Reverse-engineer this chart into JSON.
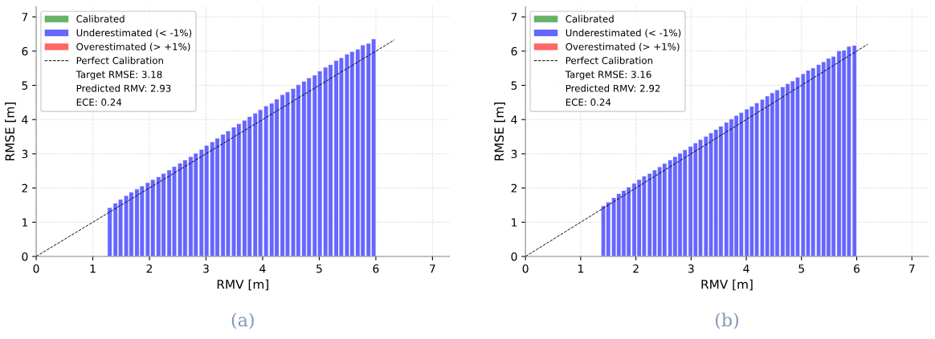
{
  "chart_data": [
    {
      "type": "bar",
      "xlabel": "RMV [m]",
      "ylabel": "RMSE [m]",
      "xlim": [
        0,
        7.3
      ],
      "ylim": [
        0,
        7.3
      ],
      "xticks": [
        0,
        1,
        2,
        3,
        4,
        5,
        6,
        7
      ],
      "yticks": [
        0,
        1,
        2,
        3,
        4,
        5,
        6,
        7
      ],
      "grid": true,
      "legend": "top left",
      "x": [
        1.3,
        1.4,
        1.49,
        1.59,
        1.68,
        1.78,
        1.87,
        1.97,
        2.06,
        2.16,
        2.25,
        2.35,
        2.44,
        2.54,
        2.63,
        2.73,
        2.82,
        2.92,
        3.01,
        3.11,
        3.2,
        3.3,
        3.39,
        3.49,
        3.58,
        3.68,
        3.77,
        3.87,
        3.96,
        4.06,
        4.16,
        4.25,
        4.35,
        4.44,
        4.54,
        4.63,
        4.73,
        4.82,
        4.92,
        5.01,
        5.11,
        5.2,
        5.3,
        5.39,
        5.49,
        5.58,
        5.68,
        5.77,
        5.87,
        5.96
      ],
      "series": [
        {
          "name": "Calibrated",
          "color": "#66b266",
          "values": [
            null,
            null,
            null,
            null,
            null,
            null,
            null,
            null,
            null,
            null,
            null,
            null,
            null,
            null,
            null,
            null,
            null,
            null,
            null,
            null,
            null,
            null,
            null,
            null,
            null,
            null,
            null,
            null,
            null,
            null,
            null,
            null,
            null,
            null,
            null,
            null,
            null,
            null,
            null,
            null,
            null,
            null,
            null,
            null,
            null,
            null,
            null,
            null,
            null,
            null
          ]
        },
        {
          "name": "Underestimated (< -1%)",
          "color": "#6666ff",
          "values": [
            1.43,
            1.56,
            1.67,
            1.78,
            1.88,
            1.97,
            2.06,
            2.16,
            2.25,
            2.33,
            2.43,
            2.53,
            2.63,
            2.73,
            2.82,
            2.92,
            3.02,
            3.13,
            3.25,
            3.35,
            3.46,
            3.57,
            3.67,
            3.78,
            3.88,
            3.98,
            4.09,
            4.19,
            4.29,
            4.4,
            4.48,
            4.6,
            4.73,
            4.81,
            4.91,
            5.02,
            5.12,
            5.22,
            5.3,
            5.42,
            5.53,
            5.61,
            5.73,
            5.81,
            5.91,
            5.99,
            6.06,
            6.18,
            6.23,
            6.36
          ]
        },
        {
          "name": "Overestimated (> +1%)",
          "color": "#ff6666",
          "values": [
            null,
            null,
            null,
            null,
            null,
            null,
            null,
            null,
            null,
            null,
            null,
            null,
            null,
            null,
            null,
            null,
            null,
            null,
            null,
            null,
            null,
            null,
            null,
            null,
            null,
            null,
            null,
            null,
            null,
            null,
            null,
            null,
            null,
            null,
            null,
            null,
            null,
            null,
            null,
            null,
            null,
            null,
            null,
            null,
            null,
            null,
            null,
            null,
            null,
            null
          ]
        },
        {
          "name": "Perfect Calibration",
          "type": "line",
          "color": "#000000",
          "line_style": "dashed",
          "x": [
            0,
            6.33
          ],
          "values": [
            0,
            6.33
          ]
        }
      ],
      "annotations": [
        "Target RMSE: 3.18",
        "Predicted RMV: 2.93",
        "ECE: 0.24",
        "(a)"
      ]
    },
    {
      "type": "bar",
      "xlabel": "RMV [m]",
      "ylabel": "RMSE [m]",
      "xlim": [
        0,
        7.3
      ],
      "ylim": [
        0,
        7.3
      ],
      "xticks": [
        0,
        1,
        2,
        3,
        4,
        5,
        6,
        7
      ],
      "yticks": [
        0,
        1,
        2,
        3,
        4,
        5,
        6,
        7
      ],
      "grid": true,
      "legend": "top left",
      "x": [
        1.41,
        1.5,
        1.6,
        1.69,
        1.78,
        1.87,
        1.97,
        2.06,
        2.15,
        2.25,
        2.34,
        2.43,
        2.52,
        2.62,
        2.71,
        2.8,
        2.89,
        2.99,
        3.08,
        3.17,
        3.27,
        3.36,
        3.45,
        3.54,
        3.64,
        3.73,
        3.82,
        3.91,
        4.01,
        4.1,
        4.19,
        4.29,
        4.38,
        4.47,
        4.56,
        4.66,
        4.75,
        4.84,
        4.93,
        5.03,
        5.12,
        5.21,
        5.31,
        5.4,
        5.49,
        5.58,
        5.68,
        5.77,
        5.86,
        5.96
      ],
      "series": [
        {
          "name": "Calibrated",
          "color": "#66b266",
          "values": [
            null,
            null,
            null,
            null,
            null,
            null,
            null,
            null,
            null,
            null,
            null,
            null,
            null,
            null,
            null,
            null,
            null,
            null,
            null,
            null,
            null,
            null,
            null,
            null,
            null,
            null,
            null,
            null,
            null,
            null,
            null,
            null,
            null,
            null,
            null,
            null,
            null,
            null,
            null,
            null,
            null,
            null,
            null,
            null,
            null,
            null,
            null,
            null,
            null,
            null
          ]
        },
        {
          "name": "Underestimated (< -1%)",
          "color": "#6666ff",
          "values": [
            1.48,
            1.59,
            1.72,
            1.84,
            1.93,
            2.03,
            2.14,
            2.25,
            2.35,
            2.43,
            2.53,
            2.62,
            2.72,
            2.82,
            2.92,
            3.02,
            3.12,
            3.22,
            3.32,
            3.42,
            3.51,
            3.61,
            3.71,
            3.81,
            3.92,
            4.02,
            4.12,
            4.21,
            4.31,
            4.39,
            4.49,
            4.59,
            4.69,
            4.78,
            4.87,
            4.96,
            5.05,
            5.13,
            5.24,
            5.34,
            5.44,
            5.51,
            5.61,
            5.69,
            5.79,
            5.85,
            6.01,
            6.03,
            6.14,
            6.17
          ]
        },
        {
          "name": "Overestimated (> +1%)",
          "color": "#ff6666",
          "values": [
            null,
            null,
            null,
            null,
            null,
            null,
            null,
            null,
            null,
            null,
            null,
            null,
            null,
            null,
            null,
            null,
            null,
            null,
            null,
            null,
            null,
            null,
            null,
            null,
            null,
            null,
            null,
            null,
            null,
            null,
            null,
            null,
            null,
            null,
            null,
            null,
            null,
            null,
            null,
            null,
            null,
            null,
            null,
            null,
            null,
            null,
            null,
            null,
            null,
            null
          ]
        },
        {
          "name": "Perfect Calibration",
          "type": "line",
          "color": "#000000",
          "line_style": "dashed",
          "x": [
            0,
            6.2
          ],
          "values": [
            0,
            6.2
          ]
        }
      ],
      "annotations": [
        "Target RMSE: 3.16",
        "Predicted RMV: 2.92",
        "ECE: 0.24",
        "(b)"
      ]
    }
  ]
}
